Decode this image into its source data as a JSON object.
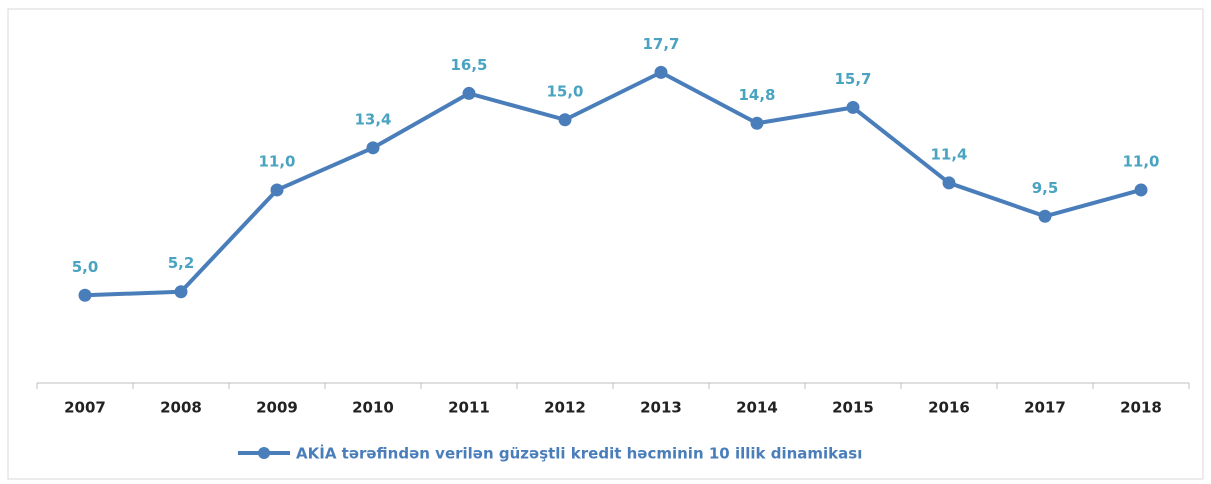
{
  "chart_data": {
    "type": "line",
    "categories": [
      "2007",
      "2008",
      "2009",
      "2010",
      "2011",
      "2012",
      "2013",
      "2014",
      "2015",
      "2016",
      "2017",
      "2018"
    ],
    "series": [
      {
        "name": "AKİA tərəfindən verilən güzəştli kredit həcminin 10 illik dinamikası",
        "color": "#4a7ebb",
        "values": [
          5.0,
          5.2,
          11.0,
          13.4,
          16.5,
          15.0,
          17.7,
          14.8,
          15.7,
          11.4,
          9.5,
          11.0
        ],
        "value_labels": [
          "5,0",
          "5,2",
          "11,0",
          "13,4",
          "16,5",
          "15,0",
          "17,7",
          "14,8",
          "15,7",
          "11,4",
          "9,5",
          "11,0"
        ]
      }
    ],
    "ylim": [
      0,
      20
    ],
    "label_color": "#4aa3c0",
    "legend": "bottom"
  }
}
